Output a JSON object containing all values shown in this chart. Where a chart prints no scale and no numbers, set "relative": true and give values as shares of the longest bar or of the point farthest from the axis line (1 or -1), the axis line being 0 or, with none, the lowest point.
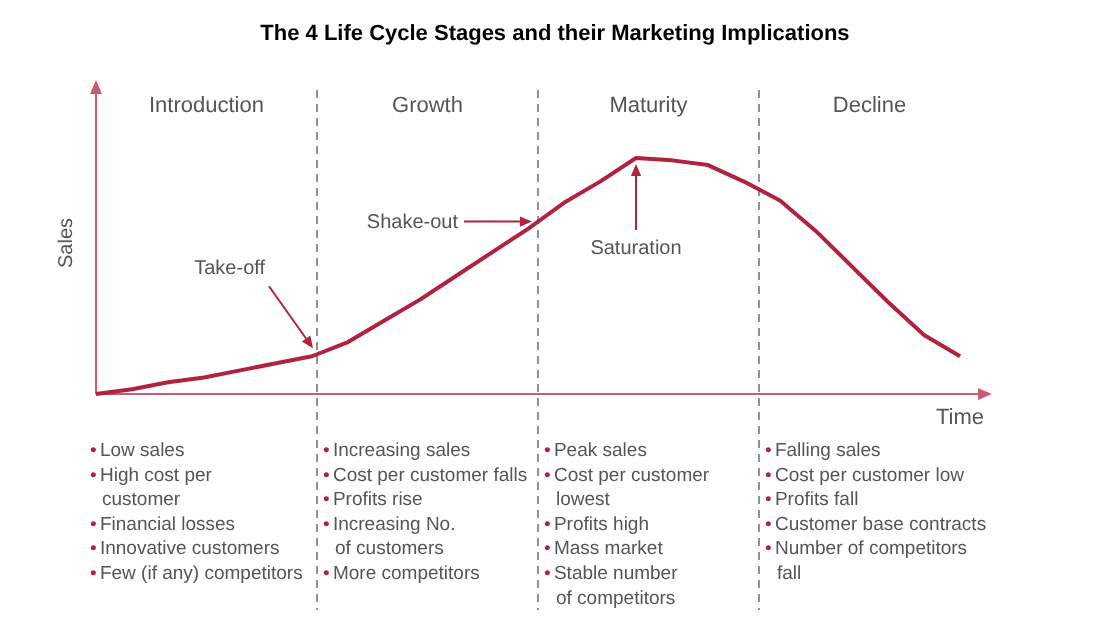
{
  "chart_data": {
    "type": "line",
    "title": "The 4 Life Cycle Stages and their Marketing Implications",
    "xlabel": "Time",
    "ylabel": "Sales",
    "relative": true,
    "marker": "none",
    "line_style": "solid",
    "categories": [
      null,
      null,
      null,
      null,
      null,
      null,
      null,
      null,
      null,
      null,
      null,
      null,
      null,
      null,
      null,
      null,
      null,
      null,
      null,
      null,
      null,
      null,
      null,
      null,
      null
    ],
    "series": [
      {
        "color": "#b0223f",
        "values": [
          0,
          0.02,
          0.05,
          0.07,
          0.1,
          0.13,
          0.16,
          0.22,
          0.31,
          0.4,
          0.5,
          0.6,
          0.7,
          0.81,
          0.9,
          1.0,
          0.99,
          0.97,
          0.9,
          0.82,
          0.69,
          0.54,
          0.39,
          0.25,
          0.16
        ]
      }
    ],
    "annotations": [
      "Introduction",
      "Growth",
      "Maturity",
      "Decline",
      "• Low sales\n• High cost per\ncustomer\n• Financial losses\n• Innovative customers\n• Few (if any) competitors",
      "• Increasing sales\n• Cost per customer falls\n• Profits rise\n• Increasing No.\nof customers\n• More competitors",
      "• Peak sales\n• Cost per customer\nlowest\n• Profits high\n• Mass market\n• Stable number\nof competitors",
      "• Falling sales\n• Cost per customer low\n• Profits fall\n• Customer base contracts\n• Number of competitors\nfall",
      "Take-off",
      "Shake-out",
      "Saturation"
    ]
  }
}
